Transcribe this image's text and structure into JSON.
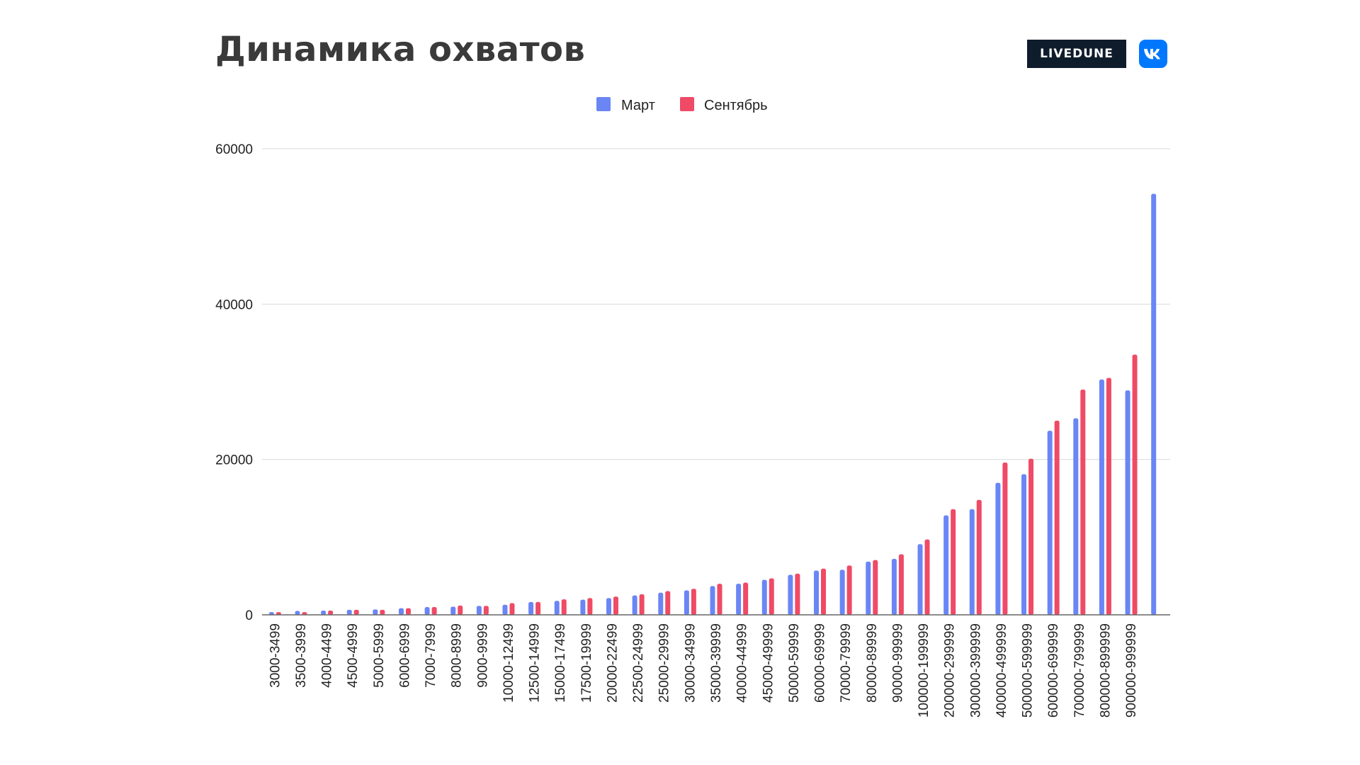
{
  "header": {
    "title": "Динамика охватов",
    "brand_badge": "LIVEDUNE",
    "vk_logo": "vk-logo-icon"
  },
  "colors": {
    "series_1": "#6a86f5",
    "series_2": "#ef4a66",
    "grid": "#d9d9d9",
    "axis": "#666666"
  },
  "chart_data": {
    "type": "bar",
    "title": "Динамика охватов",
    "xlabel": "",
    "ylabel": "",
    "ylim": [
      0,
      60000
    ],
    "yticks": [
      0,
      20000,
      40000,
      60000
    ],
    "grid": true,
    "legend": "top-center",
    "categories": [
      "3000-3499",
      "3500-3999",
      "4000-4499",
      "4500-4999",
      "5000-5999",
      "6000-6999",
      "7000-7999",
      "8000-8999",
      "9000-9999",
      "10000-12499",
      "12500-14999",
      "15000-17499",
      "17500-19999",
      "20000-22499",
      "22500-24999",
      "25000-29999",
      "30000-34999",
      "35000-39999",
      "40000-44999",
      "45000-49999",
      "50000-59999",
      "60000-69999",
      "70000-79999",
      "80000-89999",
      "90000-99999",
      "100000-199999",
      "200000-299999",
      "300000-399999",
      "400000-499999",
      "500000-599999",
      "600000-699999",
      "700000-799999",
      "800000-899999",
      "900000-999999",
      ""
    ],
    "series": [
      {
        "name": "Март",
        "values": [
          350,
          500,
          550,
          650,
          700,
          850,
          1000,
          1050,
          1150,
          1300,
          1650,
          1800,
          1950,
          2150,
          2500,
          2850,
          3150,
          3700,
          4000,
          4500,
          5150,
          5700,
          5800,
          6850,
          7200,
          9100,
          12800,
          13600,
          17000,
          18100,
          23700,
          25300,
          30300,
          28900,
          54200
        ]
      },
      {
        "name": "Сентябрь",
        "values": [
          350,
          350,
          550,
          650,
          650,
          850,
          1000,
          1200,
          1150,
          1500,
          1650,
          2000,
          2150,
          2350,
          2650,
          3050,
          3350,
          4000,
          4150,
          4700,
          5300,
          5950,
          6350,
          7050,
          7800,
          9700,
          13600,
          14800,
          19600,
          20100,
          25000,
          29000,
          30500,
          33500,
          null
        ]
      }
    ]
  }
}
